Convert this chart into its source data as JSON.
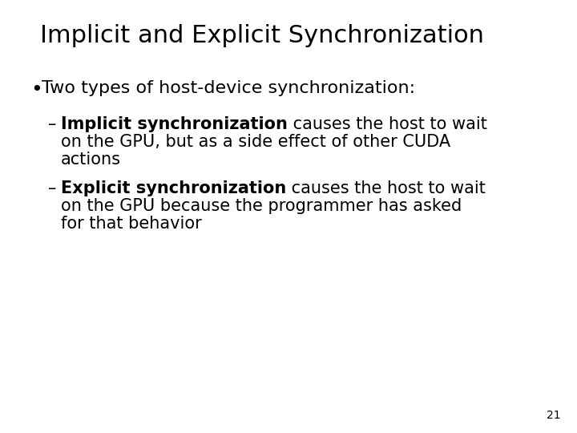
{
  "title": "Implicit and Explicit Synchronization",
  "title_fontsize": 22,
  "title_fontweight": "normal",
  "background_color": "#ffffff",
  "text_color": "#000000",
  "slide_number": "21",
  "bullet1": "Two types of host-device synchronization:",
  "bullet1_fontsize": 16,
  "sub1_bold": "Implicit synchronization",
  "sub1_rest_line1": " causes the host to wait",
  "sub1_line2": "on the GPU, but as a side effect of other CUDA",
  "sub1_line3": "actions",
  "sub2_bold": "Explicit synchronization",
  "sub2_rest_line1": " causes the host to wait",
  "sub2_line2": "on the GPU because the programmer has asked",
  "sub2_line3": "for that behavior",
  "sub_fontsize": 15,
  "font_family": "DejaVu Sans"
}
